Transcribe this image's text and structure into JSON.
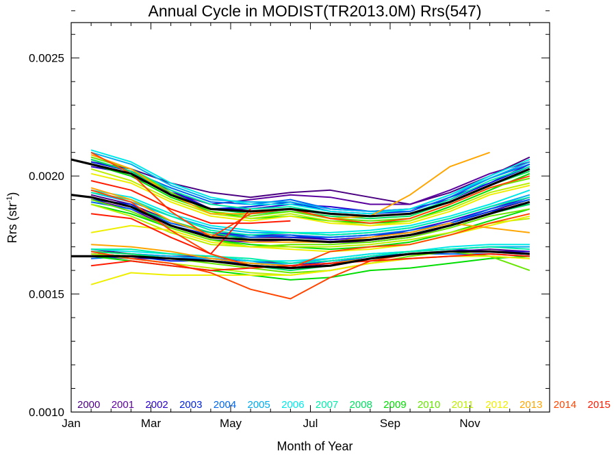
{
  "chart_data": {
    "type": "line",
    "title": "Annual Cycle in MODIST(TR2013.0M) Rrs(547)",
    "xlabel": "Month of Year",
    "ylabel_main": "Rrs (str",
    "ylabel_sup": "-1",
    "ylabel_close": ")",
    "xlim": [
      1,
      13
    ],
    "ylim": [
      0.001,
      0.00265
    ],
    "x_ticks": [
      {
        "value": 1,
        "label": "Jan"
      },
      {
        "value": 3,
        "label": "Mar"
      },
      {
        "value": 5,
        "label": "May"
      },
      {
        "value": 7,
        "label": "Jul"
      },
      {
        "value": 9,
        "label": "Sep"
      },
      {
        "value": 11,
        "label": "Nov"
      }
    ],
    "y_ticks": [
      {
        "value": 0.001,
        "label": "0.0010"
      },
      {
        "value": 0.0015,
        "label": "0.0015"
      },
      {
        "value": 0.002,
        "label": "0.0020"
      },
      {
        "value": 0.0025,
        "label": "0.0025"
      }
    ],
    "x_minor_step": 0.5,
    "y_minor_step": 0.0001,
    "x": [
      1.5,
      2.5,
      3.5,
      4.5,
      5.5,
      6.5,
      7.5,
      8.5,
      9.5,
      10.5,
      11.5,
      12.5
    ],
    "legend_placement": "bottom, inside plot, single row",
    "grid": false,
    "series": [
      {
        "name": "2000",
        "color": "#4b0082",
        "groups": [
          [
            0.00169,
            0.00167,
            0.00166,
            0.00166,
            0.00164,
            0.00163,
            0.00164,
            0.00166,
            0.00167,
            0.00168,
            0.00169,
            0.00168
          ],
          [
            0.00192,
            0.00188,
            0.00181,
            0.00175,
            0.00174,
            0.00174,
            0.00173,
            0.00174,
            0.00176,
            0.0018,
            0.00185,
            0.0019
          ],
          [
            0.00206,
            0.00203,
            0.00197,
            0.00193,
            0.00191,
            0.00193,
            0.00194,
            0.00191,
            0.00188,
            0.00193,
            0.002,
            0.00208
          ]
        ]
      },
      {
        "name": "2001",
        "color": "#5a009e",
        "groups": [
          [
            0.00166,
            0.00165,
            0.00165,
            0.00164,
            0.00162,
            0.00161,
            0.00163,
            0.00165,
            0.00167,
            0.00168,
            0.00168,
            0.00167
          ],
          [
            0.0019,
            0.00186,
            0.00178,
            0.00173,
            0.00172,
            0.00173,
            0.00172,
            0.00172,
            0.00174,
            0.00179,
            0.00184,
            0.00189
          ],
          [
            0.00205,
            0.002,
            0.00193,
            0.00188,
            0.0019,
            0.00192,
            0.00191,
            0.00188,
            0.00188,
            0.00194,
            0.00201,
            0.00206
          ]
        ]
      },
      {
        "name": "2002",
        "color": "#2a00cc",
        "groups": [
          [
            0.00167,
            0.00166,
            0.00165,
            0.00165,
            0.00163,
            0.00162,
            0.00163,
            0.00166,
            0.00168,
            0.00169,
            0.00168,
            0.00168
          ],
          [
            0.00191,
            0.00187,
            0.0018,
            0.00176,
            0.00175,
            0.00175,
            0.00173,
            0.00174,
            0.00177,
            0.00181,
            0.00186,
            0.00191
          ],
          [
            0.00204,
            0.00201,
            0.00194,
            0.00186,
            0.00186,
            0.00188,
            0.00187,
            0.00185,
            0.00186,
            0.0019,
            0.00197,
            0.00205
          ]
        ]
      },
      {
        "name": "2003",
        "color": "#0022dd",
        "groups": [
          [
            0.00167,
            0.00166,
            0.00164,
            0.00164,
            0.00163,
            0.00162,
            0.00164,
            0.00166,
            0.00167,
            0.00168,
            0.00168,
            0.00167
          ],
          [
            0.0019,
            0.00188,
            0.00179,
            0.00175,
            0.00175,
            0.00174,
            0.00174,
            0.00175,
            0.00176,
            0.0018,
            0.00185,
            0.00188
          ],
          [
            0.00206,
            0.00202,
            0.00193,
            0.00186,
            0.00187,
            0.00189,
            0.00185,
            0.00184,
            0.00185,
            0.00191,
            0.00197,
            0.00204
          ]
        ]
      },
      {
        "name": "2004",
        "color": "#0066ee",
        "groups": [
          [
            0.00165,
            0.00166,
            0.00165,
            0.00165,
            0.00164,
            0.00162,
            0.00163,
            0.00166,
            0.00167,
            0.00167,
            0.00167,
            0.00166
          ],
          [
            0.00189,
            0.00186,
            0.0018,
            0.00176,
            0.00174,
            0.00175,
            0.00174,
            0.00175,
            0.00177,
            0.0018,
            0.00186,
            0.0019
          ],
          [
            0.00207,
            0.00202,
            0.00195,
            0.00189,
            0.00188,
            0.0019,
            0.00186,
            0.00185,
            0.00185,
            0.00191,
            0.00199,
            0.00205
          ]
        ]
      },
      {
        "name": "2005",
        "color": "#00aaee",
        "groups": [
          [
            0.00168,
            0.00167,
            0.00166,
            0.00165,
            0.00163,
            0.00163,
            0.00165,
            0.00167,
            0.00168,
            0.00169,
            0.0017,
            0.0017
          ],
          [
            0.00193,
            0.00189,
            0.00183,
            0.00178,
            0.00176,
            0.00176,
            0.00175,
            0.00176,
            0.00178,
            0.00182,
            0.00187,
            0.00192
          ],
          [
            0.0021,
            0.00205,
            0.00196,
            0.0019,
            0.00189,
            0.00189,
            0.00186,
            0.00185,
            0.00186,
            0.00192,
            0.00199,
            0.00206
          ]
        ]
      },
      {
        "name": "2006",
        "color": "#00e8e8",
        "groups": [
          [
            0.00169,
            0.00168,
            0.00167,
            0.00166,
            0.00164,
            0.00164,
            0.00165,
            0.00167,
            0.00168,
            0.0017,
            0.00171,
            0.00171
          ],
          [
            0.00194,
            0.00191,
            0.00184,
            0.00179,
            0.00177,
            0.00176,
            0.00176,
            0.00177,
            0.00179,
            0.00183,
            0.00188,
            0.00194
          ],
          [
            0.00211,
            0.00206,
            0.00197,
            0.00191,
            0.00188,
            0.00188,
            0.00185,
            0.00184,
            0.00186,
            0.00192,
            0.002,
            0.00207
          ]
        ]
      },
      {
        "name": "2007",
        "color": "#00eeaa",
        "groups": [
          [
            0.00169,
            0.00169,
            0.00167,
            0.00166,
            0.00165,
            0.00163,
            0.00164,
            0.00166,
            0.00168,
            0.00169,
            0.0017,
            0.00169
          ],
          [
            0.00193,
            0.0019,
            0.00183,
            0.00177,
            0.00175,
            0.00176,
            0.00175,
            0.00176,
            0.00178,
            0.00182,
            0.00187,
            0.00191
          ],
          [
            0.00208,
            0.00203,
            0.00194,
            0.00188,
            0.00186,
            0.00187,
            0.00184,
            0.00183,
            0.00184,
            0.0019,
            0.00198,
            0.00204
          ]
        ]
      },
      {
        "name": "2008",
        "color": "#00e060",
        "groups": [
          [
            0.00168,
            0.00167,
            0.00165,
            0.00164,
            0.00162,
            0.0016,
            0.00162,
            0.00165,
            0.00167,
            0.00168,
            0.00168,
            0.00167
          ],
          [
            0.00191,
            0.00187,
            0.00181,
            0.00176,
            0.00173,
            0.00173,
            0.00172,
            0.00173,
            0.00175,
            0.00179,
            0.00184,
            0.00188
          ],
          [
            0.00207,
            0.00202,
            0.00192,
            0.00186,
            0.00184,
            0.00185,
            0.00183,
            0.00182,
            0.00183,
            0.00189,
            0.00196,
            0.00202
          ]
        ]
      },
      {
        "name": "2009",
        "color": "#00dd00",
        "groups": [
          [
            0.00166,
            0.00164,
            0.00162,
            0.0016,
            0.00158,
            0.00156,
            0.00157,
            0.0016,
            0.00161,
            0.00163,
            0.00165,
            0.00166
          ],
          [
            0.00188,
            0.00184,
            0.00178,
            0.00173,
            0.00171,
            0.0017,
            0.00169,
            0.0017,
            0.00172,
            0.00176,
            0.00181,
            0.00186
          ],
          [
            0.00205,
            0.002,
            0.00191,
            0.00185,
            0.00182,
            0.00183,
            0.00181,
            0.0018,
            0.00181,
            0.00187,
            0.00194,
            0.00201
          ]
        ]
      },
      {
        "name": "2010",
        "color": "#66e600",
        "groups": [
          [
            0.00167,
            0.00166,
            0.00165,
            0.00163,
            0.00161,
            0.00159,
            0.0016,
            0.00163,
            0.00166,
            0.00168,
            0.00166,
            0.0016
          ],
          [
            0.0019,
            0.00185,
            0.00178,
            0.00173,
            0.0017,
            0.00171,
            0.00171,
            0.00172,
            0.00174,
            0.00178,
            0.00183,
            0.00186
          ],
          [
            0.00208,
            0.00203,
            0.00193,
            0.00185,
            0.00183,
            0.00185,
            0.00182,
            0.00181,
            0.00182,
            0.00188,
            0.00195,
            0.00199
          ]
        ]
      },
      {
        "name": "2011",
        "color": "#bbee00",
        "groups": [
          [
            0.00167,
            0.00165,
            0.00163,
            0.00161,
            0.00159,
            0.00158,
            0.0016,
            0.00163,
            0.00165,
            0.00166,
            0.00166,
            0.00165
          ],
          [
            0.00188,
            0.00183,
            0.00176,
            0.00171,
            0.0017,
            0.0017,
            0.0017,
            0.00171,
            0.00173,
            0.00176,
            0.0018,
            0.00182
          ],
          [
            0.00203,
            0.00198,
            0.0019,
            0.00184,
            0.00182,
            0.00184,
            0.00181,
            0.00179,
            0.00181,
            0.00186,
            0.00193,
            0.00197
          ]
        ]
      },
      {
        "name": "2012",
        "color": "#eeee00",
        "groups": [
          [
            0.00154,
            0.00159,
            0.00158,
            0.00158,
            0.00158,
            0.00158,
            0.0016,
            0.00163,
            0.00165,
            0.00166,
            0.00166,
            0.00165
          ],
          [
            0.00176,
            0.00179,
            0.00177,
            0.00172,
            0.0017,
            0.00169,
            0.00168,
            0.00169,
            0.00171,
            0.00175,
            0.00179,
            0.00183
          ],
          [
            0.00201,
            0.00197,
            0.00189,
            0.00183,
            0.00181,
            0.00183,
            0.0018,
            0.00179,
            0.0018,
            0.00185,
            0.00192,
            0.00196
          ]
        ]
      },
      {
        "name": "2013",
        "color": "#ffa500",
        "groups": [
          [
            0.00171,
            0.0017,
            0.00168,
            0.00165,
            0.00163,
            0.00162,
            0.00163,
            0.00165,
            0.00167,
            0.00168,
            0.00168,
            0.00167
          ],
          [
            0.00195,
            0.0019,
            0.00181,
            0.00175,
            0.00172,
            0.00172,
            0.00172,
            0.00174,
            0.00176,
            0.0018,
            0.00178,
            0.00176
          ],
          [
            0.00209,
            0.00203,
            0.00192,
            0.00184,
            0.00184,
            0.00186,
            0.00182,
            0.00183,
            0.00192,
            0.00204,
            0.0021,
            null
          ]
        ]
      },
      {
        "name": "2014",
        "color": "#ff4500",
        "groups": [
          [
            0.00168,
            0.00165,
            0.00163,
            0.00159,
            0.00152,
            0.00148,
            0.00157,
            0.00164,
            0.00167,
            0.00168,
            0.00168,
            0.00167
          ],
          [
            0.00194,
            0.00189,
            0.00177,
            0.00167,
            0.00162,
            0.00161,
            0.00168,
            0.0017,
            0.00171,
            0.00175,
            0.0018,
            0.00184
          ],
          [
            0.0021,
            0.00201,
            0.00185,
            0.00174,
            0.00184,
            0.00186,
            0.00182,
            0.0018,
            0.00182,
            0.00188,
            0.00195,
            0.002
          ]
        ]
      },
      {
        "name": "2015",
        "color": "#ff1a00",
        "groups": [
          [
            0.00162,
            0.00164,
            0.00162,
            0.0016,
            0.00161,
            0.00162,
            0.00163,
            0.00164,
            0.00165,
            0.00166,
            0.00167,
            0.00166
          ],
          [
            0.00184,
            0.00182,
            0.00174,
            0.00167,
            0.00186,
            null,
            null,
            null,
            null,
            null,
            null,
            null
          ],
          [
            0.00198,
            0.00194,
            0.00186,
            0.0018,
            0.0018,
            0.00181,
            null,
            null,
            null,
            null,
            null,
            null
          ]
        ]
      }
    ],
    "climatology": {
      "color": "#000000",
      "x": [
        1,
        1.5,
        2.5,
        3.5,
        4.5,
        5.5,
        6.5,
        7.5,
        8.5,
        9.5,
        10.5,
        11.5,
        12.5
      ],
      "groups": [
        [
          0.00166,
          0.00166,
          0.00166,
          0.00165,
          0.00164,
          0.00162,
          0.00161,
          0.00162,
          0.00165,
          0.00167,
          0.00168,
          0.00168,
          0.00167
        ],
        [
          0.00192,
          0.00191,
          0.00187,
          0.00179,
          0.00174,
          0.00173,
          0.00173,
          0.00172,
          0.00173,
          0.00175,
          0.00179,
          0.00184,
          0.00189
        ],
        [
          0.00207,
          0.00205,
          0.00201,
          0.00192,
          0.00186,
          0.00185,
          0.00186,
          0.00184,
          0.00183,
          0.00184,
          0.00189,
          0.00196,
          0.00203
        ]
      ]
    }
  }
}
